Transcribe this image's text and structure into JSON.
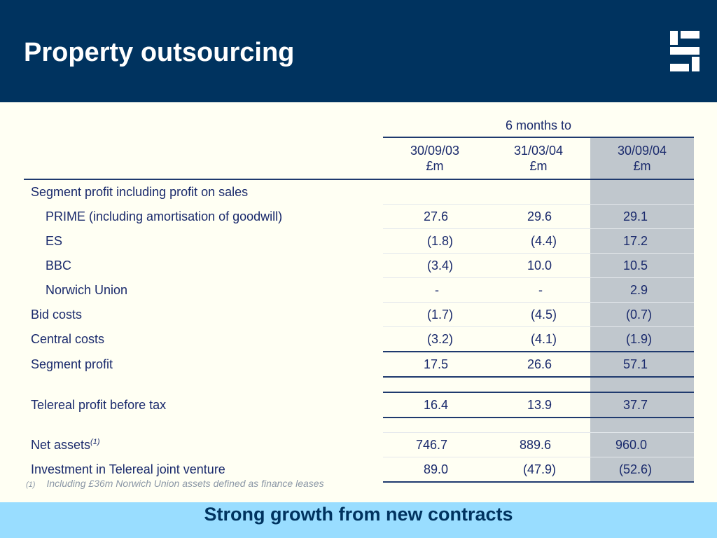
{
  "title": "Property outsourcing",
  "logo": "company-logo",
  "table": {
    "group_header": "6 months to",
    "columns": [
      {
        "date": "30/09/03",
        "unit": "£m"
      },
      {
        "date": "31/03/04",
        "unit": "£m"
      },
      {
        "date": "30/09/04",
        "unit": "£m"
      }
    ],
    "section_label": "Segment profit including profit on sales",
    "rows": [
      {
        "label": "PRIME (including amortisation of goodwill)",
        "v1": "27.6",
        "v2": "29.6",
        "v3": "29.1"
      },
      {
        "label": "ES",
        "v1": "(1.8)",
        "v2": "(4.4)",
        "v3": "17.2"
      },
      {
        "label": "BBC",
        "v1": "(3.4)",
        "v2": "10.0",
        "v3": "10.5"
      },
      {
        "label": "Norwich Union",
        "v1": "-",
        "v2": "-",
        "v3": "2.9"
      },
      {
        "label": "Bid costs",
        "v1": "(1.7)",
        "v2": "(4.5)",
        "v3": "(0.7)"
      },
      {
        "label": "Central costs",
        "v1": "(3.2)",
        "v2": "(4.1)",
        "v3": "(1.9)"
      },
      {
        "label": "Segment profit",
        "v1": "17.5",
        "v2": "26.6",
        "v3": "57.1"
      },
      {
        "label": "Telereal profit before tax",
        "v1": "16.4",
        "v2": "13.9",
        "v3": "37.7"
      },
      {
        "label": "Net assets",
        "sup": "(1)",
        "v1": "746.7",
        "v2": "889.6",
        "v3": "960.0"
      },
      {
        "label": "Investment in Telereal joint venture",
        "v1": "89.0",
        "v2": "(47.9)",
        "v3": "(52.6)"
      }
    ]
  },
  "footnote": {
    "marker": "(1)",
    "text": "Including £36m Norwich Union assets defined as finance leases"
  },
  "tagline": "Strong growth from new contracts",
  "colors": {
    "header_bg": "#00335f",
    "highlight_col": "#c0c7cd",
    "date_text": "#a0243a",
    "band_bg": "#99ddff"
  }
}
